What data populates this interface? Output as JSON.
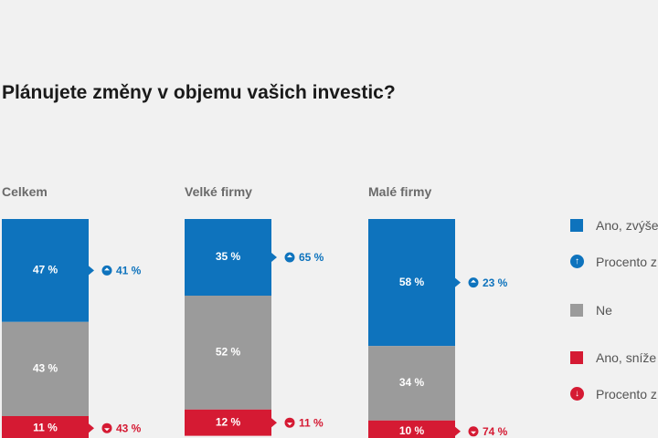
{
  "colors": {
    "increase": "#0e73bd",
    "none": "#9b9b9b",
    "decrease": "#d51a33"
  },
  "chart_data": {
    "type": "bar",
    "stacked": true,
    "title": "Plánujete změny v objemu vašich investic?",
    "categories": [
      "Celkem",
      "Velké firmy",
      "Malé firmy"
    ],
    "series": [
      {
        "name": "Ano, zvýše",
        "values": [
          47,
          35,
          58
        ],
        "labels": [
          "47 %",
          "35 %",
          "58 %"
        ]
      },
      {
        "name": "Ne",
        "values": [
          43,
          52,
          34
        ],
        "labels": [
          "43 %",
          "52 %",
          "34 %"
        ]
      },
      {
        "name": "Ano, sníže",
        "values": [
          11,
          12,
          10
        ],
        "labels": [
          "11 %",
          "12 %",
          "10 %"
        ]
      }
    ],
    "change_percent": {
      "increase": {
        "values": [
          41,
          65,
          23
        ],
        "labels": [
          "41 %",
          "65 %",
          "23 %"
        ]
      },
      "decrease": {
        "values": [
          43,
          11,
          74
        ],
        "labels": [
          "43 %",
          "11 %",
          "74 %"
        ]
      }
    },
    "legend": [
      {
        "text": "Ano, zvýše",
        "kind": "swatch",
        "color": "#0e73bd"
      },
      {
        "text": "Procento z",
        "kind": "arrow-up",
        "color": "#0e73bd"
      },
      {
        "text": "Ne",
        "kind": "swatch",
        "color": "#9b9b9b"
      },
      {
        "text": "Ano, sníže",
        "kind": "swatch",
        "color": "#d51a33"
      },
      {
        "text": "Procento z",
        "kind": "arrow-down",
        "color": "#d51a33"
      }
    ],
    "legend_position": "right"
  }
}
